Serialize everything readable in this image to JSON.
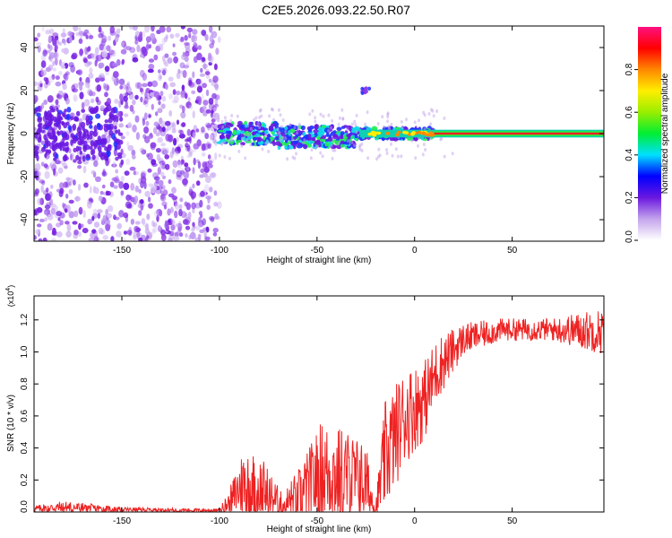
{
  "title": "C2E5.2026.093.22.50.R07",
  "colors": {
    "background": "#ffffff",
    "axis": "#000000",
    "snr_line": "#ee2222",
    "spectrum_purple": "#7a1fe0",
    "spectrum_light": "#d9c2f7"
  },
  "chart_data": [
    {
      "type": "heatmap",
      "name": "spectrogram",
      "xlabel": "Height of straight line (km)",
      "ylabel": "Frequency (Hz)",
      "xlim": [
        -195,
        97
      ],
      "ylim": [
        -50,
        50
      ],
      "xticks": [
        -150,
        -100,
        -50,
        0,
        50
      ],
      "yticks": [
        -40,
        -20,
        0,
        20,
        40
      ],
      "colorbar": {
        "label": "Normalized spectral amplitude",
        "range": [
          0,
          1
        ],
        "ticks": [
          "0.0",
          "0.2",
          "0.4",
          "0.6",
          "0.8"
        ],
        "tick_values": [
          0.0,
          0.2,
          0.4,
          0.6,
          0.8
        ],
        "stops": [
          {
            "v": 0.0,
            "c": "#ffffff"
          },
          {
            "v": 0.1,
            "c": "#c4a4ec"
          },
          {
            "v": 0.2,
            "c": "#6a18e0"
          },
          {
            "v": 0.3,
            "c": "#0000ff"
          },
          {
            "v": 0.4,
            "c": "#00e0ff"
          },
          {
            "v": 0.5,
            "c": "#00ee33"
          },
          {
            "v": 0.6,
            "c": "#99ee00"
          },
          {
            "v": 0.7,
            "c": "#ffee00"
          },
          {
            "v": 0.8,
            "c": "#ff8800"
          },
          {
            "v": 0.9,
            "c": "#ff0000"
          },
          {
            "v": 1.0,
            "c": "#ff1080"
          }
        ]
      },
      "regions": [
        {
          "x_from": -195,
          "x_to": -100,
          "description": "diffuse purple scatter",
          "freq_spread": 50
        },
        {
          "x_from": -100,
          "x_to": 10,
          "description": "clustered band near 0 Hz",
          "freq_spread": 4
        },
        {
          "x_from": 10,
          "x_to": 97,
          "description": "narrow band at 0 Hz",
          "freq_spread": 1
        }
      ],
      "annotations": [
        {
          "x": -25,
          "y": 20,
          "text": ""
        }
      ]
    },
    {
      "type": "line",
      "name": "snr",
      "xlabel": "Height of straight line (km)",
      "ylabel": "SNR (10 * v/v)",
      "scale_label": "(x10",
      "scale_exponent": "4",
      "scale_close": ")",
      "xlim": [
        -195,
        97
      ],
      "ylim": [
        0,
        1.35
      ],
      "xticks": [
        -150,
        -100,
        -50,
        0,
        50
      ],
      "yticks": [
        "0.0",
        "0.2",
        "0.4",
        "0.6",
        "0.8",
        "1.0",
        "1.2"
      ],
      "ytick_values": [
        0.0,
        0.2,
        0.4,
        0.6,
        0.8,
        1.0,
        1.2
      ],
      "envelope": [
        {
          "x": -195,
          "base": 0.02,
          "amp": 0.02
        },
        {
          "x": -180,
          "base": 0.03,
          "amp": 0.04
        },
        {
          "x": -150,
          "base": 0.015,
          "amp": 0.015
        },
        {
          "x": -100,
          "base": 0.01,
          "amp": 0.01
        },
        {
          "x": -95,
          "base": 0.06,
          "amp": 0.08
        },
        {
          "x": -88,
          "base": 0.18,
          "amp": 0.22
        },
        {
          "x": -78,
          "base": 0.14,
          "amp": 0.2
        },
        {
          "x": -68,
          "base": 0.04,
          "amp": 0.08
        },
        {
          "x": -58,
          "base": 0.1,
          "amp": 0.2
        },
        {
          "x": -48,
          "base": 0.25,
          "amp": 0.32
        },
        {
          "x": -35,
          "base": 0.22,
          "amp": 0.3
        },
        {
          "x": -25,
          "base": 0.18,
          "amp": 0.25
        },
        {
          "x": -20,
          "base": 0.02,
          "amp": 0.05
        },
        {
          "x": -15,
          "base": 0.35,
          "amp": 0.35
        },
        {
          "x": -5,
          "base": 0.6,
          "amp": 0.3
        },
        {
          "x": 5,
          "base": 0.7,
          "amp": 0.25
        },
        {
          "x": 12,
          "base": 0.9,
          "amp": 0.2
        },
        {
          "x": 25,
          "base": 1.08,
          "amp": 0.1
        },
        {
          "x": 45,
          "base": 1.14,
          "amp": 0.07
        },
        {
          "x": 70,
          "base": 1.14,
          "amp": 0.07
        },
        {
          "x": 97,
          "base": 1.13,
          "amp": 0.15
        }
      ]
    }
  ]
}
